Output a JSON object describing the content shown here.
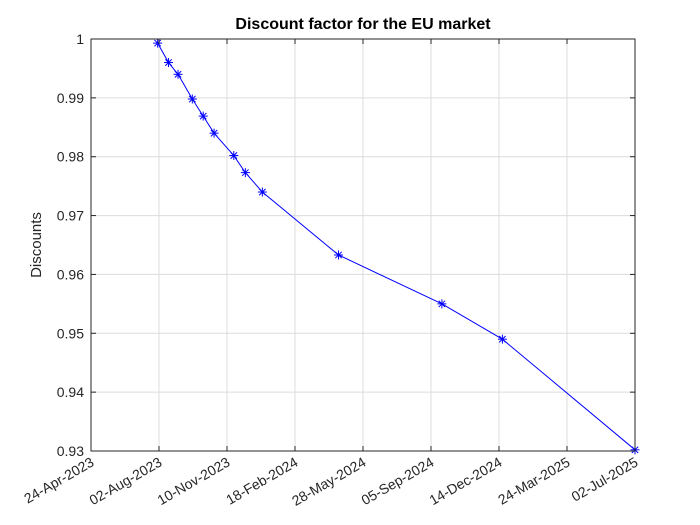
{
  "chart_data": {
    "type": "line",
    "title": "Discount factor for the EU market",
    "xlabel": "",
    "ylabel": "Discounts",
    "x_type": "date",
    "xlim": [
      "2023-04-24",
      "2025-07-02"
    ],
    "ylim": [
      0.93,
      1.0
    ],
    "grid": true,
    "x_ticks": [
      "2023-04-24",
      "2023-08-02",
      "2023-11-10",
      "2024-02-18",
      "2024-05-28",
      "2024-09-05",
      "2024-12-14",
      "2025-03-24",
      "2025-07-02"
    ],
    "x_tick_labels": [
      "24-Apr-2023",
      "02-Aug-2023",
      "10-Nov-2023",
      "18-Feb-2024",
      "28-May-2024",
      "05-Sep-2024",
      "14-Dec-2024",
      "24-Mar-2025",
      "02-Jul-2025"
    ],
    "y_ticks": [
      0.93,
      0.94,
      0.95,
      0.96,
      0.97,
      0.98,
      0.99,
      1.0
    ],
    "y_tick_labels": [
      "0.93",
      "0.94",
      "0.95",
      "0.96",
      "0.97",
      "0.98",
      "0.99",
      "1"
    ],
    "series": [
      {
        "color": "#0000ff",
        "marker": "asterisk",
        "x": [
          "2023-07-31",
          "2023-08-16",
          "2023-08-30",
          "2023-09-20",
          "2023-10-06",
          "2023-10-22",
          "2023-11-20",
          "2023-12-07",
          "2024-01-01",
          "2024-04-22",
          "2024-09-21",
          "2024-12-19",
          "2025-07-02"
        ],
        "y": [
          0.9993,
          0.996,
          0.994,
          0.9898,
          0.9869,
          0.984,
          0.9802,
          0.9773,
          0.974,
          0.9633,
          0.955,
          0.949,
          0.9302
        ]
      }
    ]
  }
}
